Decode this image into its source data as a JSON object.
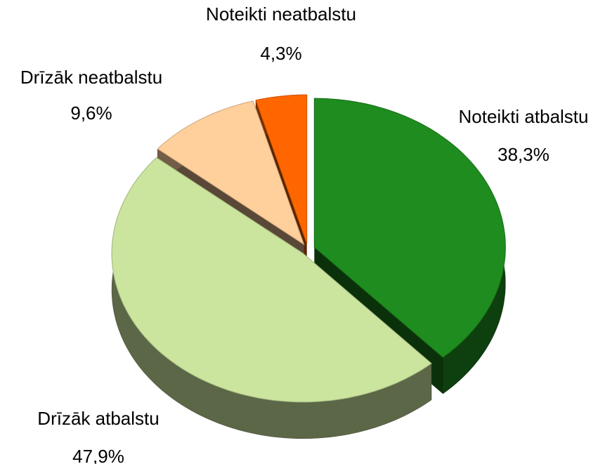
{
  "chart_data": {
    "type": "pie3d",
    "categories": [
      "Noteikti atbalstu",
      "Drīzāk atbalstu",
      "Drīzāk neatbalstu",
      "Noteikti neatbalstu"
    ],
    "values": [
      38.3,
      47.9,
      9.6,
      4.3
    ],
    "value_labels": [
      "38,3%",
      "47,9%",
      "9,6%",
      "4,3%"
    ],
    "colors": [
      "#1e8c1e",
      "#cbe49e",
      "#ffcf9c",
      "#ff6600"
    ]
  }
}
